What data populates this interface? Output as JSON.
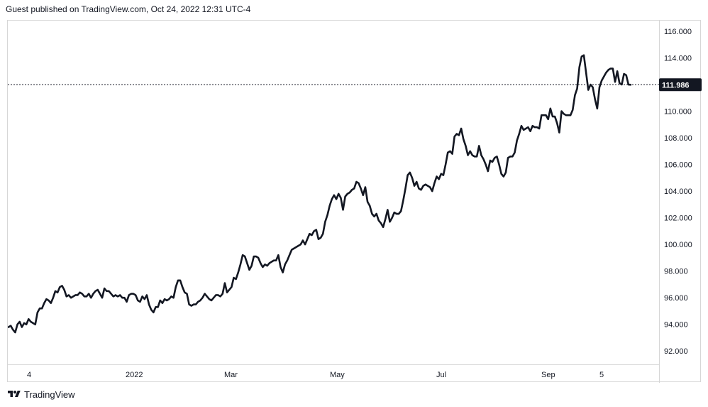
{
  "header": {
    "published": "Guest published on TradingView.com, Oct 24, 2022 12:31 UTC-4"
  },
  "brand": {
    "name": "TradingView",
    "icon": "tradingview-logo-icon"
  },
  "colors": {
    "line": "#131722",
    "background": "#ffffff",
    "axis_border": "#d6d6d6",
    "price_label_bg": "#131722"
  },
  "chart_data": {
    "type": "line",
    "title": "",
    "xlabel": "",
    "ylabel": "",
    "grid": false,
    "ylim": [
      91.0,
      116.8
    ],
    "y_ticks": [
      "92.000",
      "94.000",
      "96.000",
      "98.000",
      "100.000",
      "102.000",
      "104.000",
      "106.000",
      "108.000",
      "110.000",
      "112.000",
      "114.000",
      "116.000"
    ],
    "x_ticks": [
      "4",
      "2022",
      "Mar",
      "May",
      "Jul",
      "Sep",
      "5"
    ],
    "last_price": 111.986,
    "last_price_label": "111.986",
    "series": [
      {
        "values": [
          93.8,
          93.9,
          93.6,
          93.4,
          94.0,
          94.2,
          93.8,
          94.1,
          94.0,
          94.4,
          94.2,
          94.1,
          94.0,
          94.9,
          95.2,
          95.2,
          95.6,
          95.9,
          95.8,
          95.6,
          96.0,
          96.5,
          96.4,
          96.8,
          96.9,
          96.6,
          96.1,
          96.2,
          96.0,
          96.1,
          96.2,
          96.2,
          96.4,
          96.3,
          96.1,
          96.1,
          96.3,
          96.0,
          96.3,
          96.5,
          96.6,
          96.3,
          96.0,
          96.7,
          96.5,
          96.5,
          96.3,
          96.1,
          96.2,
          96.1,
          96.2,
          96.0,
          96.0,
          95.7,
          96.2,
          96.3,
          96.3,
          96.2,
          95.8,
          95.7,
          96.1,
          95.9,
          96.2,
          95.5,
          95.1,
          94.9,
          95.3,
          95.3,
          95.8,
          95.6,
          95.9,
          95.8,
          95.9,
          96.1,
          96.0,
          96.8,
          97.3,
          97.3,
          96.8,
          96.4,
          96.3,
          95.5,
          95.4,
          95.5,
          95.5,
          95.7,
          95.8,
          96.0,
          96.3,
          96.1,
          95.9,
          95.8,
          96.0,
          96.2,
          96.2,
          96.1,
          96.3,
          97.1,
          96.4,
          96.6,
          96.8,
          97.5,
          97.4,
          97.9,
          98.5,
          99.2,
          99.1,
          98.6,
          98.1,
          98.4,
          99.1,
          99.1,
          99.0,
          98.6,
          98.3,
          98.5,
          98.4,
          98.6,
          98.7,
          98.8,
          98.8,
          99.2,
          98.3,
          97.9,
          98.5,
          98.8,
          99.2,
          99.6,
          99.7,
          99.8,
          99.9,
          100.0,
          100.3,
          100.0,
          100.4,
          100.8,
          100.7,
          101.0,
          101.1,
          100.4,
          100.5,
          100.8,
          101.7,
          102.2,
          102.9,
          103.4,
          103.7,
          103.4,
          103.8,
          103.5,
          102.6,
          103.6,
          103.8,
          103.9,
          104.1,
          104.2,
          104.7,
          104.6,
          104.2,
          103.7,
          104.3,
          103.2,
          102.9,
          102.3,
          102.1,
          102.3,
          101.8,
          101.6,
          101.3,
          101.9,
          102.6,
          101.7,
          102.0,
          102.4,
          102.3,
          102.3,
          102.5,
          103.3,
          104.2,
          105.2,
          105.4,
          105.0,
          104.4,
          104.7,
          104.2,
          104.1,
          104.4,
          104.5,
          104.4,
          104.3,
          104.0,
          104.6,
          105.1,
          104.9,
          105.3,
          105.2,
          106.0,
          106.9,
          107.0,
          106.8,
          108.1,
          108.3,
          108.2,
          108.7,
          107.9,
          107.4,
          106.7,
          107.0,
          106.7,
          106.6,
          106.6,
          107.4,
          106.7,
          106.4,
          106.0,
          105.5,
          106.3,
          106.2,
          106.5,
          106.6,
          106.0,
          105.3,
          105.1,
          105.4,
          106.5,
          106.6,
          106.6,
          106.9,
          107.8,
          108.3,
          108.9,
          108.6,
          108.7,
          108.8,
          108.5,
          108.9,
          108.8,
          108.8,
          108.7,
          109.7,
          109.7,
          109.7,
          109.4,
          110.2,
          109.6,
          109.6,
          109.1,
          108.4,
          110.0,
          109.8,
          109.7,
          109.7,
          109.7,
          110.1,
          111.2,
          111.7,
          113.3,
          114.1,
          114.2,
          112.9,
          111.6,
          112.0,
          111.8,
          110.9,
          110.2,
          111.8,
          112.3,
          112.6,
          112.9,
          113.1,
          113.2,
          113.2,
          112.2,
          113.0,
          112.1,
          112.0,
          112.8,
          112.7,
          112.0,
          111.986
        ]
      }
    ]
  }
}
